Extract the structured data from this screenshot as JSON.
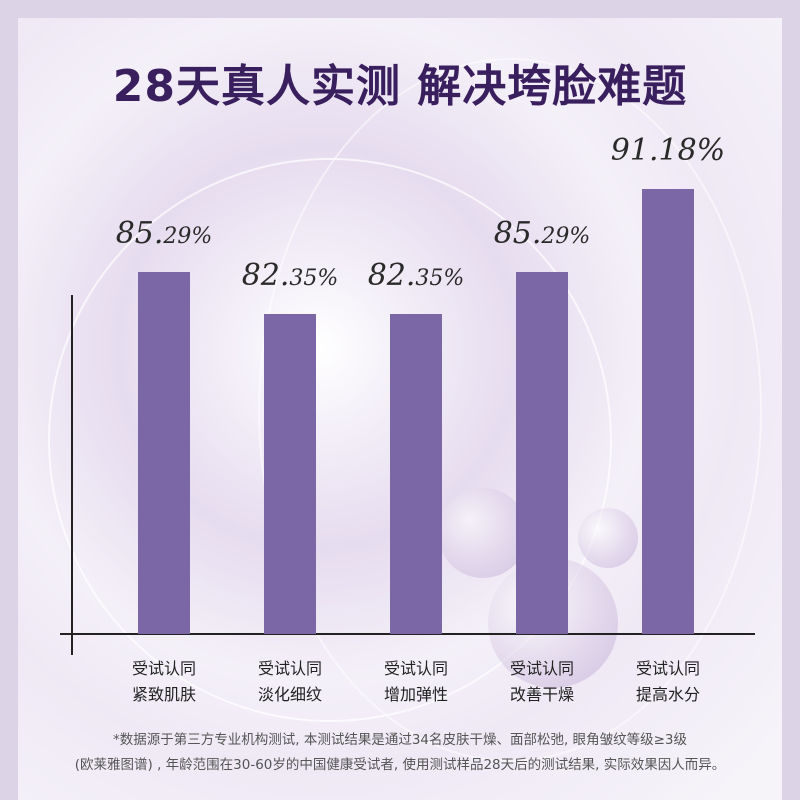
{
  "title": "28天真人实测  解决垮脸难题",
  "chart_data": {
    "type": "bar",
    "title": "28天真人实测  解决垮脸难题",
    "categories": [
      [
        "受试认同",
        "紧致肌肤"
      ],
      [
        "受试认同",
        "淡化细纹"
      ],
      [
        "受试认同",
        "增加弹性"
      ],
      [
        "受试认同",
        "改善干燥"
      ],
      [
        "受试认同",
        "提高水分"
      ]
    ],
    "values": [
      85.29,
      82.35,
      82.35,
      85.29,
      91.18
    ],
    "labels": [
      {
        "int": "85.",
        "dec": "29%"
      },
      {
        "int": "82.",
        "dec": "35%"
      },
      {
        "int": "82.",
        "dec": "35%"
      },
      {
        "int": "85.",
        "dec": "29%"
      },
      {
        "int": "91.18%",
        "dec": ""
      }
    ],
    "ylim": [
      59.7,
      95
    ],
    "xlabel": "",
    "ylabel": "",
    "bar_color": "#7b67a6"
  },
  "footnote": [
    "*数据源于第三方专业机构测试, 本测试结果是通过34名皮肤干燥、面部松弛, 眼角皱纹等级≥3级",
    "(欧莱雅图谱) , 年龄范围在30-60岁的中国健康受试者, 使用测试样品28天后的测试结果, 实际效果因人而异。"
  ]
}
